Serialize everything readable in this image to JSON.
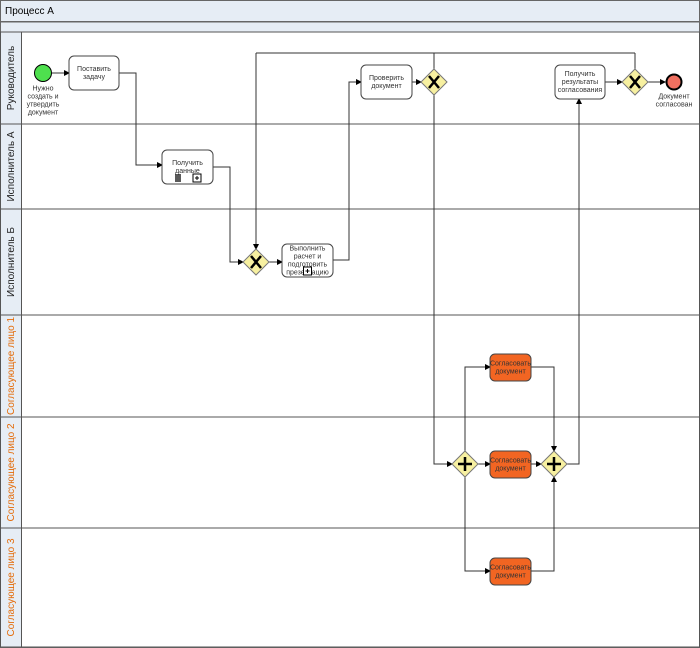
{
  "pool": {
    "title": "Процесс А"
  },
  "lanes": [
    {
      "label": "Руководитель",
      "color": "#222222"
    },
    {
      "label": "Исполнитель А",
      "color": "#222222"
    },
    {
      "label": "Исполнитель Б",
      "color": "#222222"
    },
    {
      "label": "Согласующее лицо 1",
      "color": "#e46c0a"
    },
    {
      "label": "Согласующее лицо 2",
      "color": "#e46c0a"
    },
    {
      "label": "Согласующее лицо 3",
      "color": "#e46c0a"
    }
  ],
  "events": {
    "start": {
      "label": [
        "Нужно",
        "создать и",
        "утвердить",
        "документ"
      ],
      "color": "#4ee04e"
    },
    "end": {
      "label": [
        "Документ",
        "согласован"
      ],
      "color": "#f07060"
    }
  },
  "tasks": {
    "set_task": [
      "Поставить",
      "задачу"
    ],
    "get_data": [
      "Получить",
      "данные"
    ],
    "calc": [
      "Выполнить",
      "расчет и",
      "подготовить",
      "презентацию"
    ],
    "check": [
      "Проверить",
      "документ"
    ],
    "results": [
      "Получить",
      "результаты",
      "согласования"
    ],
    "approve1": [
      "Согласовать",
      "документ"
    ],
    "approve2": [
      "Согласовать",
      "документ"
    ],
    "approve3": [
      "Согласовать",
      "документ"
    ]
  },
  "colors": {
    "gateway": "#f7f0a0",
    "approve_task": "#f26522"
  }
}
